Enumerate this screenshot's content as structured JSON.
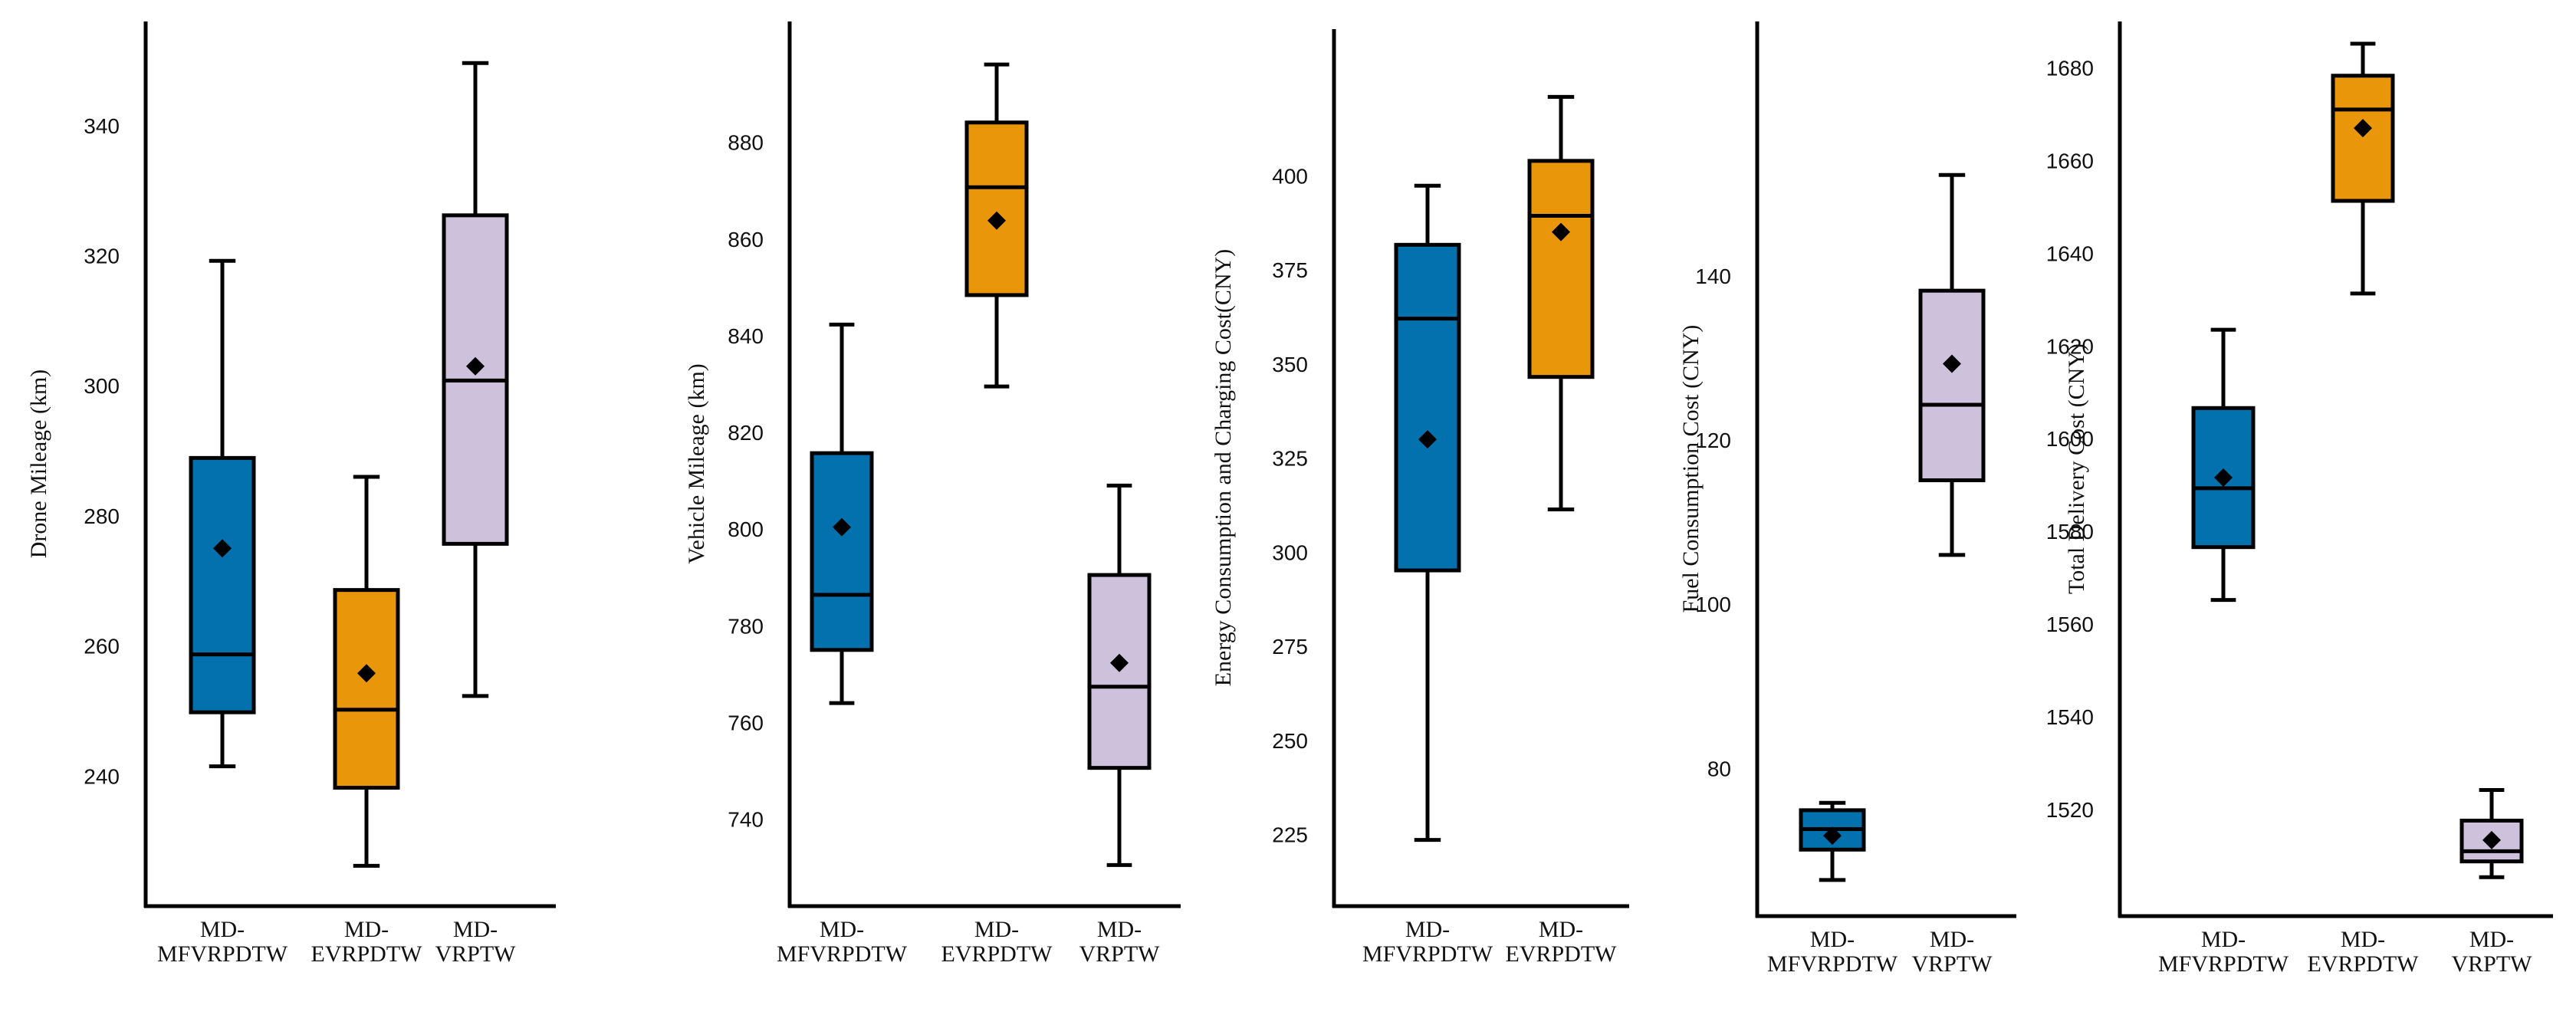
{
  "colors": {
    "MD-MFVRPDTW": "#0271ad",
    "MD-EVRPDTW": "#e9960a",
    "MD-VRPTW": "#cdc1dc",
    "stroke": "#000000",
    "mean": "#000000"
  },
  "chart_data": [
    {
      "type": "box",
      "ylabel": "Drone Mileage (km)",
      "ylim": [
        220,
        356
      ],
      "ticks": [
        240,
        260,
        280,
        300,
        320,
        340
      ],
      "tick_labels": [
        "240",
        "260",
        "280",
        "300",
        "320",
        "340"
      ],
      "series": [
        {
          "name": "MD-MFVRPDTW",
          "label_lines": [
            "MD-",
            "MFVRPDTW"
          ],
          "whisker_low": 241.5,
          "q1": 249.8,
          "median": 258.7,
          "q3": 288.9,
          "whisker_high": 319.2,
          "mean": 275.0
        },
        {
          "name": "MD-EVRPDTW",
          "label_lines": [
            "MD-",
            "EVRPDTW"
          ],
          "whisker_low": 226.2,
          "q1": 238.2,
          "median": 250.2,
          "q3": 268.6,
          "whisker_high": 286.0,
          "mean": 255.8
        },
        {
          "name": "MD-VRPTW",
          "label_lines": [
            "MD-",
            "VRPTW"
          ],
          "whisker_low": 252.3,
          "q1": 275.7,
          "median": 300.8,
          "q3": 326.2,
          "whisker_high": 349.6,
          "mean": 303.0
        }
      ]
    },
    {
      "type": "box",
      "ylabel": "Vehicle Mileage (km)",
      "ylim": [
        722,
        905
      ],
      "ticks": [
        740,
        760,
        780,
        800,
        820,
        840,
        860,
        880
      ],
      "tick_labels": [
        "740",
        "760",
        "780",
        "800",
        "820",
        "840",
        "860",
        "880"
      ],
      "series": [
        {
          "name": "MD-MFVRPDTW",
          "label_lines": [
            "MD-",
            "MFVRPDTW"
          ],
          "whisker_low": 764.0,
          "q1": 775.0,
          "median": 786.4,
          "q3": 815.7,
          "whisker_high": 842.3,
          "mean": 800.4
        },
        {
          "name": "MD-EVRPDTW",
          "label_lines": [
            "MD-",
            "EVRPDTW"
          ],
          "whisker_low": 829.5,
          "q1": 848.4,
          "median": 870.7,
          "q3": 884.1,
          "whisker_high": 896.1,
          "mean": 863.8
        },
        {
          "name": "MD-VRPTW",
          "label_lines": [
            "MD-",
            "VRPTW"
          ],
          "whisker_low": 730.5,
          "q1": 750.6,
          "median": 767.4,
          "q3": 790.5,
          "whisker_high": 809.0,
          "mean": 772.3
        }
      ]
    },
    {
      "type": "box",
      "ylabel": "Energy Consumption and Charging Cost(CNY)",
      "ylim": [
        206,
        439
      ],
      "ticks": [
        225,
        250,
        275,
        300,
        325,
        350,
        375,
        400
      ],
      "tick_labels": [
        "225",
        "250",
        "275",
        "300",
        "325",
        "350",
        "375",
        "400"
      ],
      "series": [
        {
          "name": "MD-MFVRPDTW",
          "label_lines": [
            "MD-",
            "MFVRPDTW"
          ],
          "whisker_low": 223.6,
          "q1": 295.2,
          "median": 362.1,
          "q3": 381.7,
          "whisker_high": 397.4,
          "mean": 330.0
        },
        {
          "name": "MD-EVRPDTW",
          "label_lines": [
            "MD-",
            "EVRPDTW"
          ],
          "whisker_low": 311.4,
          "q1": 346.6,
          "median": 389.4,
          "q3": 404.0,
          "whisker_high": 421.0,
          "mean": 385.1
        }
      ]
    },
    {
      "type": "box",
      "ylabel": "Fuel Consumption Cost (CNY)",
      "ylim": [
        62,
        171
      ],
      "ticks": [
        80,
        100,
        120,
        140
      ],
      "tick_labels": [
        "80",
        "100",
        "120",
        "140"
      ],
      "series": [
        {
          "name": "MD-MFVRPDTW",
          "label_lines": [
            "MD-",
            "MFVRPDTW"
          ],
          "whisker_low": 66.4,
          "q1": 70.1,
          "median": 72.6,
          "q3": 74.9,
          "whisker_high": 75.8,
          "mean": 71.8
        },
        {
          "name": "MD-VRPTW",
          "label_lines": [
            "MD-",
            "VRPTW"
          ],
          "whisker_low": 106.0,
          "q1": 115.1,
          "median": 124.3,
          "q3": 138.2,
          "whisker_high": 152.3,
          "mean": 129.3
        }
      ]
    },
    {
      "type": "box",
      "ylabel": "Total Delivery Cost (CNY)",
      "ylim": [
        1497,
        1690
      ],
      "ticks": [
        1520,
        1540,
        1560,
        1580,
        1600,
        1620,
        1640,
        1660,
        1680
      ],
      "tick_labels": [
        "1520",
        "1540",
        "1560",
        "1580",
        "1600",
        "1620",
        "1640",
        "1660",
        "1680"
      ],
      "series": [
        {
          "name": "MD-MFVRPDTW",
          "label_lines": [
            "MD-",
            "MFVRPDTW"
          ],
          "whisker_low": 1565.2,
          "q1": 1576.6,
          "median": 1589.3,
          "q3": 1606.6,
          "whisker_high": 1623.5,
          "mean": 1591.6
        },
        {
          "name": "MD-EVRPDTW",
          "label_lines": [
            "MD-",
            "EVRPDTW"
          ],
          "whisker_low": 1631.3,
          "q1": 1651.3,
          "median": 1671.0,
          "q3": 1678.3,
          "whisker_high": 1685.2,
          "mean": 1667.0
        },
        {
          "name": "MD-VRPTW",
          "label_lines": [
            "MD-",
            "VRPTW"
          ],
          "whisker_low": 1505.4,
          "q1": 1508.8,
          "median": 1511.0,
          "q3": 1517.6,
          "whisker_high": 1524.2,
          "mean": 1513.4
        }
      ]
    }
  ]
}
